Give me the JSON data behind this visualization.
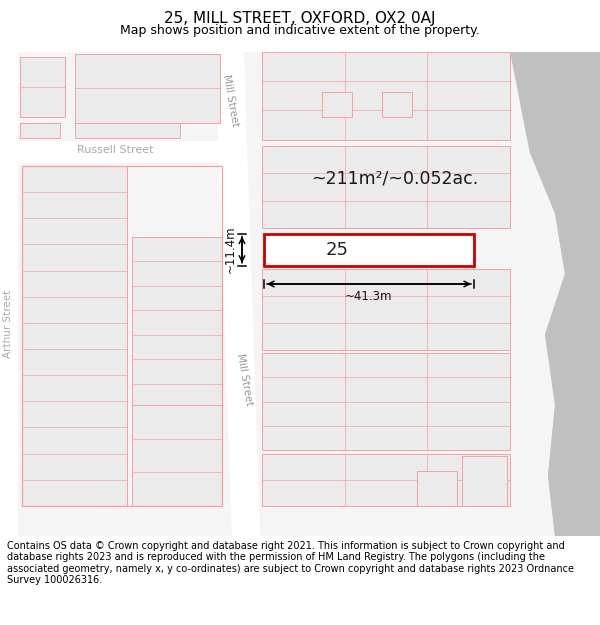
{
  "title": "25, MILL STREET, OXFORD, OX2 0AJ",
  "subtitle": "Map shows position and indicative extent of the property.",
  "footer": "Contains OS data © Crown copyright and database right 2021. This information is subject to Crown copyright and database rights 2023 and is reproduced with the permission of HM Land Registry. The polygons (including the associated geometry, namely x, y co-ordinates) are subject to Crown copyright and database rights 2023 Ordnance Survey 100026316.",
  "building_fill": "#ebebeb",
  "building_edge": "#f5a0a0",
  "road_fill": "#ffffff",
  "gray_area": "#cccccc",
  "highlight_fill": "#ffffff",
  "highlight_edge": "#cc0000",
  "area_text": "~211m²/~0.052ac.",
  "property_label": "25",
  "dim_width": "~41.3m",
  "dim_height": "~11.4m",
  "street_label_mill1": "Mill Street",
  "street_label_mill2": "Mill Street",
  "street_label_russell": "Russell Street",
  "street_label_arthur": "Arthur Street",
  "title_fontsize": 11,
  "subtitle_fontsize": 9,
  "footer_fontsize": 7.0,
  "map_bg": "#f5f5f5"
}
